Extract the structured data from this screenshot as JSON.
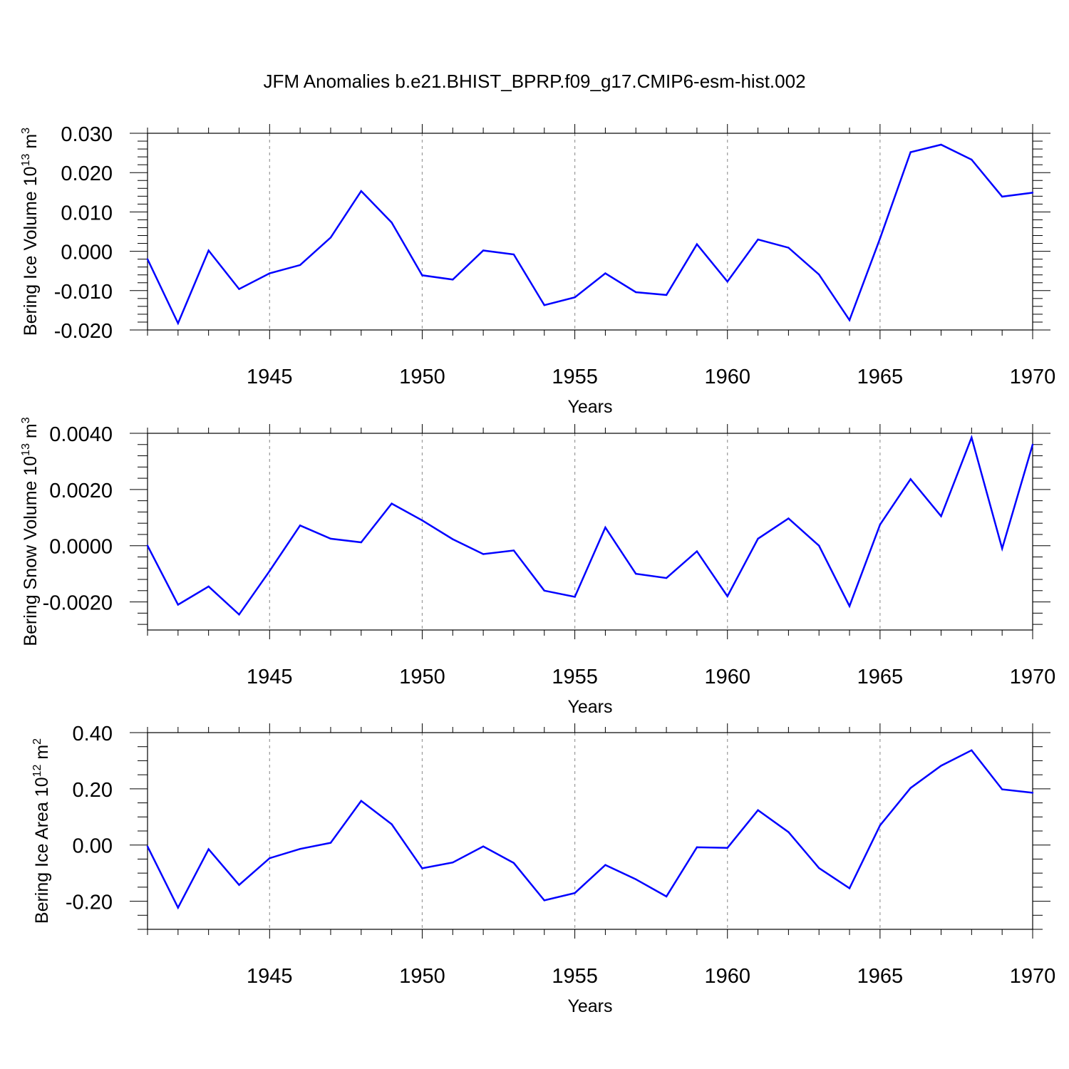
{
  "title": "JFM Anomalies b.e21.BHIST_BPRP.f09_g17.CMIP6-esm-hist.002",
  "colors": {
    "line": "#0000ff",
    "axis": "#000000",
    "grid": "#999999"
  },
  "chart_data": [
    {
      "type": "line",
      "ylabel_main": "Bering Ice Volume 10",
      "ylabel_exp": "13",
      "ylabel_unit": " m",
      "ylabel_unit_exp": "3",
      "xlabel": "Years",
      "xlim": [
        1941,
        1970
      ],
      "ylim": [
        -0.02,
        0.03
      ],
      "xticks": [
        1945,
        1950,
        1955,
        1960,
        1965,
        1970
      ],
      "xtick_labels": [
        "1945",
        "1950",
        "1955",
        "1960",
        "1965",
        "1970"
      ],
      "yticks": [
        -0.02,
        -0.01,
        0.0,
        0.01,
        0.02,
        0.03
      ],
      "ytick_labels": [
        "-0.020",
        "-0.010",
        "0.000",
        "0.010",
        "0.020",
        "0.030"
      ],
      "yminor": 0.002,
      "x": [
        1941,
        1942,
        1943,
        1944,
        1945,
        1946,
        1947,
        1948,
        1949,
        1950,
        1951,
        1952,
        1953,
        1954,
        1955,
        1956,
        1957,
        1958,
        1959,
        1960,
        1961,
        1962,
        1963,
        1964,
        1965,
        1966,
        1967,
        1968,
        1969,
        1970
      ],
      "series": [
        {
          "name": "Bering Ice Volume",
          "values": [
            -0.002,
            -0.0183,
            0.0002,
            -0.0096,
            -0.0056,
            -0.0035,
            0.0035,
            0.0153,
            0.0073,
            -0.0061,
            -0.0072,
            0.0002,
            -0.0008,
            -0.0137,
            -0.0117,
            -0.0056,
            -0.0104,
            -0.0111,
            0.0018,
            -0.0077,
            0.003,
            0.0009,
            -0.0059,
            -0.0175,
            0.0033,
            0.0252,
            0.0271,
            0.0233,
            0.0139,
            0.0149
          ]
        }
      ]
    },
    {
      "type": "line",
      "ylabel_main": "Bering Snow Volume 10",
      "ylabel_exp": "13",
      "ylabel_unit": " m",
      "ylabel_unit_exp": "3",
      "xlabel": "Years",
      "xlim": [
        1941,
        1970
      ],
      "ylim": [
        -0.003,
        0.004
      ],
      "xticks": [
        1945,
        1950,
        1955,
        1960,
        1965,
        1970
      ],
      "xtick_labels": [
        "1945",
        "1950",
        "1955",
        "1960",
        "1965",
        "1970"
      ],
      "yticks": [
        -0.002,
        0.0,
        0.002,
        0.004
      ],
      "ytick_labels": [
        "-0.0020",
        "0.0000",
        "0.0020",
        "0.0040"
      ],
      "yminor": 0.0004,
      "x": [
        1941,
        1942,
        1943,
        1944,
        1945,
        1946,
        1947,
        1948,
        1949,
        1950,
        1951,
        1952,
        1953,
        1954,
        1955,
        1956,
        1957,
        1958,
        1959,
        1960,
        1961,
        1962,
        1963,
        1964,
        1965,
        1966,
        1967,
        1968,
        1969,
        1970
      ],
      "series": [
        {
          "name": "Bering Snow Volume",
          "values": [
            0.0,
            -0.0021,
            -0.00145,
            -0.00245,
            -0.0009,
            0.00072,
            0.00025,
            0.00012,
            0.0015,
            0.0009,
            0.00023,
            -0.0003,
            -0.00017,
            -0.0016,
            -0.00182,
            0.00065,
            -0.001,
            -0.00115,
            -0.0002,
            -0.0018,
            0.00025,
            0.00097,
            0.0,
            -0.00215,
            0.00075,
            0.00237,
            0.00105,
            0.00385,
            -0.0001,
            0.0036
          ]
        }
      ]
    },
    {
      "type": "line",
      "ylabel_main": "Bering Ice Area 10",
      "ylabel_exp": "12",
      "ylabel_unit": " m",
      "ylabel_unit_exp": "2",
      "xlabel": "Years",
      "xlim": [
        1941,
        1970
      ],
      "ylim": [
        -0.3,
        0.4
      ],
      "xticks": [
        1945,
        1950,
        1955,
        1960,
        1965,
        1970
      ],
      "xtick_labels": [
        "1945",
        "1950",
        "1955",
        "1960",
        "1965",
        "1970"
      ],
      "yticks": [
        -0.2,
        0.0,
        0.2,
        0.4
      ],
      "ytick_labels": [
        "-0.20",
        "0.00",
        "0.20",
        "0.40"
      ],
      "yminor": 0.05,
      "x": [
        1941,
        1942,
        1943,
        1944,
        1945,
        1946,
        1947,
        1948,
        1949,
        1950,
        1951,
        1952,
        1953,
        1954,
        1955,
        1956,
        1957,
        1958,
        1959,
        1960,
        1961,
        1962,
        1963,
        1964,
        1965,
        1966,
        1967,
        1968,
        1969,
        1970
      ],
      "series": [
        {
          "name": "Bering Ice Area",
          "values": [
            -0.005,
            -0.223,
            -0.015,
            -0.142,
            -0.047,
            -0.014,
            0.008,
            0.157,
            0.074,
            -0.083,
            -0.062,
            -0.005,
            -0.064,
            -0.197,
            -0.171,
            -0.071,
            -0.122,
            -0.183,
            -0.008,
            -0.01,
            0.124,
            0.046,
            -0.082,
            -0.154,
            0.07,
            0.203,
            0.282,
            0.337,
            0.198,
            0.186
          ]
        }
      ]
    }
  ]
}
